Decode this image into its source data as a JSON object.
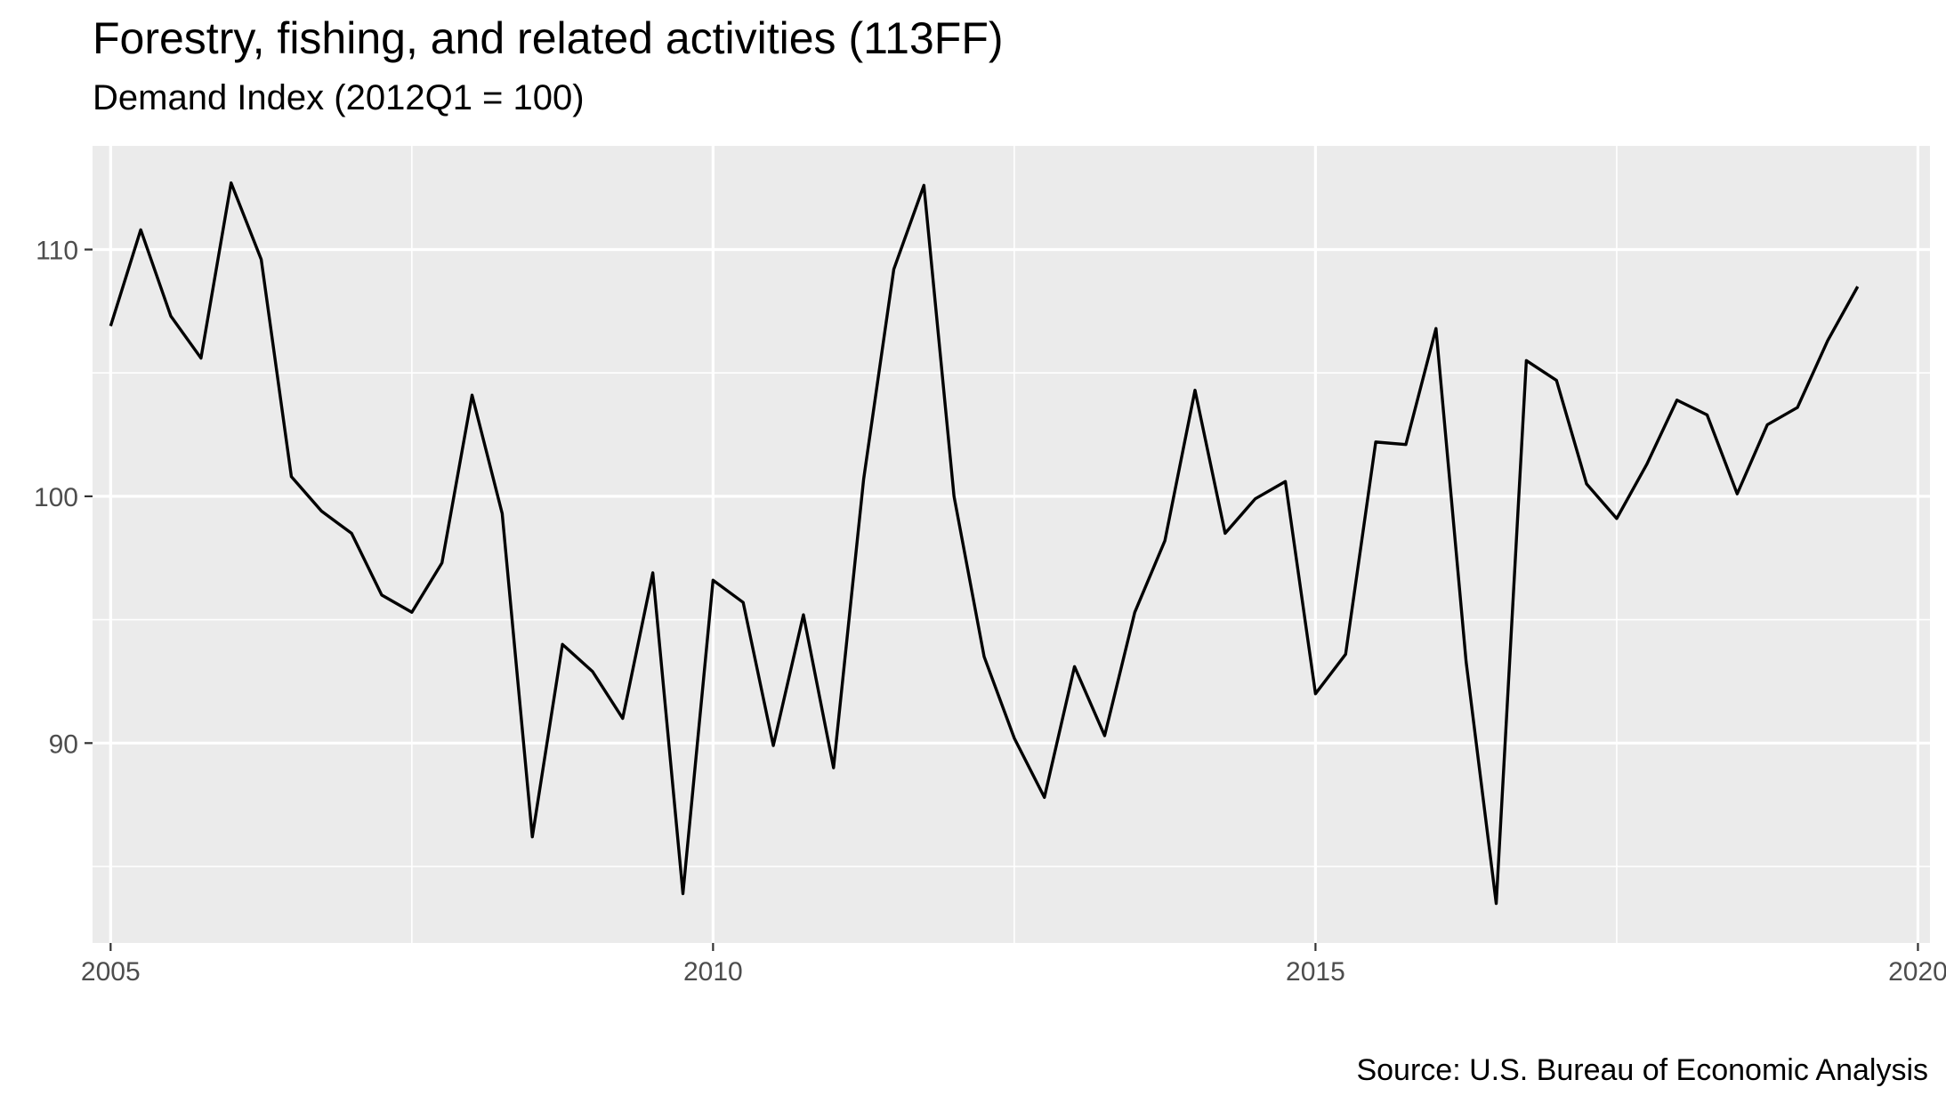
{
  "chart_data": {
    "type": "line",
    "title": "Forestry, fishing, and related activities (113FF)",
    "subtitle": "Demand Index (2012Q1 = 100)",
    "caption": "Source: U.S. Bureau of Economic Analysis",
    "xlabel": "",
    "ylabel": "",
    "xlim": [
      2004.85,
      2020.1
    ],
    "ylim": [
      81.9,
      114.2
    ],
    "x_ticks": [
      2005,
      2010,
      2015,
      2020
    ],
    "x_tick_labels": [
      "2005",
      "2010",
      "2015",
      "2020"
    ],
    "y_ticks": [
      90,
      100,
      110
    ],
    "y_tick_labels": [
      "90",
      "100",
      "110"
    ],
    "grid": true,
    "legend": "none",
    "colors": {
      "panel": "#EBEBEB",
      "grid": "#FFFFFF",
      "line": "#000000",
      "tick_text": "#4D4D4D",
      "tick_mark": "#333333"
    },
    "series": [
      {
        "x": [
          2005.0,
          2005.25,
          2005.5,
          2005.75,
          2006.0,
          2006.25,
          2006.5,
          2006.75,
          2007.0,
          2007.25,
          2007.5,
          2007.75,
          2008.0,
          2008.25,
          2008.5,
          2008.75,
          2009.0,
          2009.25,
          2009.5,
          2009.75,
          2010.0,
          2010.25,
          2010.5,
          2010.75,
          2011.0,
          2011.25,
          2011.5,
          2011.75,
          2012.0,
          2012.25,
          2012.5,
          2012.75,
          2013.0,
          2013.25,
          2013.5,
          2013.75,
          2014.0,
          2014.25,
          2014.5,
          2014.75,
          2015.0,
          2015.25,
          2015.5,
          2015.75,
          2016.0,
          2016.25,
          2016.5,
          2016.75,
          2017.0,
          2017.25,
          2017.5,
          2017.75,
          2018.0,
          2018.25,
          2018.5,
          2018.75,
          2019.0,
          2019.25,
          2019.5
        ],
        "values": [
          106.9,
          110.8,
          107.3,
          105.6,
          112.7,
          109.6,
          100.8,
          99.4,
          98.5,
          96.0,
          95.3,
          97.3,
          104.1,
          99.3,
          86.2,
          94.0,
          92.9,
          91.0,
          96.9,
          83.9,
          96.6,
          95.7,
          89.9,
          95.2,
          89.0,
          100.7,
          109.2,
          112.6,
          100.0,
          93.5,
          90.2,
          87.8,
          93.1,
          90.3,
          95.3,
          98.2,
          104.3,
          98.5,
          99.9,
          100.6,
          92.0,
          93.6,
          102.2,
          102.1,
          106.8,
          93.3,
          83.5,
          105.5,
          104.7,
          100.5,
          99.1,
          101.3,
          103.9,
          103.3,
          100.1,
          102.9,
          103.6,
          106.3,
          108.5
        ]
      }
    ]
  }
}
